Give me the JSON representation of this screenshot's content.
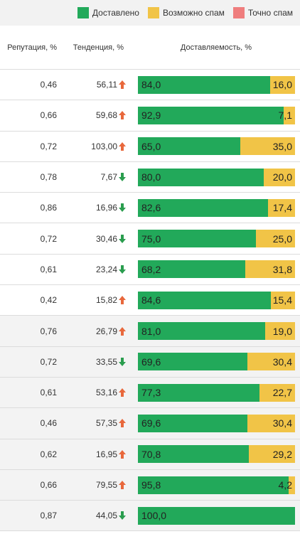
{
  "legend": {
    "items": [
      {
        "label": "Доставлено",
        "color": "#22a95a"
      },
      {
        "label": "Возможно спам",
        "color": "#f1c447"
      },
      {
        "label": "Точно спам",
        "color": "#ef7d7d"
      }
    ]
  },
  "columns": {
    "reputation": "Репутация, %",
    "trend": "Тенденция, %",
    "deliverability": "Доставляемость, %"
  },
  "colors": {
    "delivered": "#22a95a",
    "maybe_spam": "#f1c447",
    "arrow_up": "#e8683c",
    "arrow_down": "#2a9d4e"
  },
  "rows": [
    {
      "reputation": "0,46",
      "trend": "56,11",
      "direction": "up",
      "delivered": 84.0,
      "delivered_label": "84,0",
      "spam": 16.0,
      "spam_label": "16,0"
    },
    {
      "reputation": "0,66",
      "trend": "59,68",
      "direction": "up",
      "delivered": 92.9,
      "delivered_label": "92,9",
      "spam": 7.1,
      "spam_label": "7,1"
    },
    {
      "reputation": "0,72",
      "trend": "103,00",
      "direction": "up",
      "delivered": 65.0,
      "delivered_label": "65,0",
      "spam": 35.0,
      "spam_label": "35,0"
    },
    {
      "reputation": "0,78",
      "trend": "7,67",
      "direction": "down",
      "delivered": 80.0,
      "delivered_label": "80,0",
      "spam": 20.0,
      "spam_label": "20,0"
    },
    {
      "reputation": "0,86",
      "trend": "16,96",
      "direction": "down",
      "delivered": 82.6,
      "delivered_label": "82,6",
      "spam": 17.4,
      "spam_label": "17,4"
    },
    {
      "reputation": "0,72",
      "trend": "30,46",
      "direction": "down",
      "delivered": 75.0,
      "delivered_label": "75,0",
      "spam": 25.0,
      "spam_label": "25,0"
    },
    {
      "reputation": "0,61",
      "trend": "23,24",
      "direction": "down",
      "delivered": 68.2,
      "delivered_label": "68,2",
      "spam": 31.8,
      "spam_label": "31,8"
    },
    {
      "reputation": "0,42",
      "trend": "15,82",
      "direction": "up",
      "delivered": 84.6,
      "delivered_label": "84,6",
      "spam": 15.4,
      "spam_label": "15,4"
    },
    {
      "reputation": "0,76",
      "trend": "26,79",
      "direction": "up",
      "delivered": 81.0,
      "delivered_label": "81,0",
      "spam": 19.0,
      "spam_label": "19,0"
    },
    {
      "reputation": "0,72",
      "trend": "33,55",
      "direction": "down",
      "delivered": 69.6,
      "delivered_label": "69,6",
      "spam": 30.4,
      "spam_label": "30,4"
    },
    {
      "reputation": "0,61",
      "trend": "53,16",
      "direction": "up",
      "delivered": 77.3,
      "delivered_label": "77,3",
      "spam": 22.7,
      "spam_label": "22,7"
    },
    {
      "reputation": "0,46",
      "trend": "57,35",
      "direction": "up",
      "delivered": 69.6,
      "delivered_label": "69,6",
      "spam": 30.4,
      "spam_label": "30,4"
    },
    {
      "reputation": "0,62",
      "trend": "16,95",
      "direction": "up",
      "delivered": 70.8,
      "delivered_label": "70,8",
      "spam": 29.2,
      "spam_label": "29,2"
    },
    {
      "reputation": "0,66",
      "trend": "79,55",
      "direction": "up",
      "delivered": 95.8,
      "delivered_label": "95,8",
      "spam": 4.2,
      "spam_label": "4,2"
    },
    {
      "reputation": "0,87",
      "trend": "44,05",
      "direction": "down",
      "delivered": 100.0,
      "delivered_label": "100,0",
      "spam": 0,
      "spam_label": ""
    }
  ]
}
